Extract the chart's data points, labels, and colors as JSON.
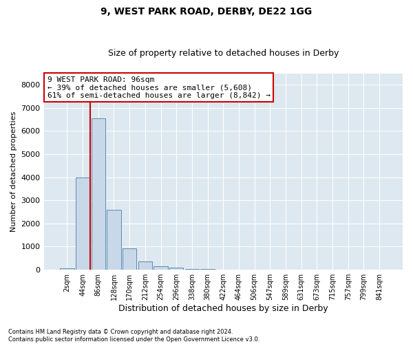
{
  "title_line1": "9, WEST PARK ROAD, DERBY, DE22 1GG",
  "title_line2": "Size of property relative to detached houses in Derby",
  "xlabel": "Distribution of detached houses by size in Derby",
  "ylabel": "Number of detached properties",
  "annotation_title": "9 WEST PARK ROAD: 96sqm",
  "annotation_line2": "← 39% of detached houses are smaller (5,608)",
  "annotation_line3": "61% of semi-detached houses are larger (8,842) →",
  "footnote1": "Contains HM Land Registry data © Crown copyright and database right 2024.",
  "footnote2": "Contains public sector information licensed under the Open Government Licence v3.0.",
  "bar_color": "#c8d8e8",
  "bar_edge_color": "#5a8ab0",
  "highlight_line_color": "#cc0000",
  "background_color": "#ffffff",
  "plot_bg_color": "#dde8f0",
  "grid_color": "#ffffff",
  "ylim": [
    0,
    8500
  ],
  "yticks": [
    0,
    1000,
    2000,
    3000,
    4000,
    5000,
    6000,
    7000,
    8000
  ],
  "bin_labels": [
    "2sqm",
    "44sqm",
    "86sqm",
    "128sqm",
    "170sqm",
    "212sqm",
    "254sqm",
    "296sqm",
    "338sqm",
    "380sqm",
    "422sqm",
    "464sqm",
    "506sqm",
    "547sqm",
    "589sqm",
    "631sqm",
    "673sqm",
    "715sqm",
    "757sqm",
    "799sqm",
    "841sqm"
  ],
  "bar_values": [
    60,
    3980,
    6560,
    2580,
    930,
    370,
    155,
    80,
    45,
    30,
    15,
    8,
    5,
    3,
    2,
    1,
    1,
    0,
    0,
    0,
    0
  ],
  "highlight_bin_index": 2,
  "annotation_box_color": "#ffffff",
  "annotation_box_edge_color": "#cc0000"
}
